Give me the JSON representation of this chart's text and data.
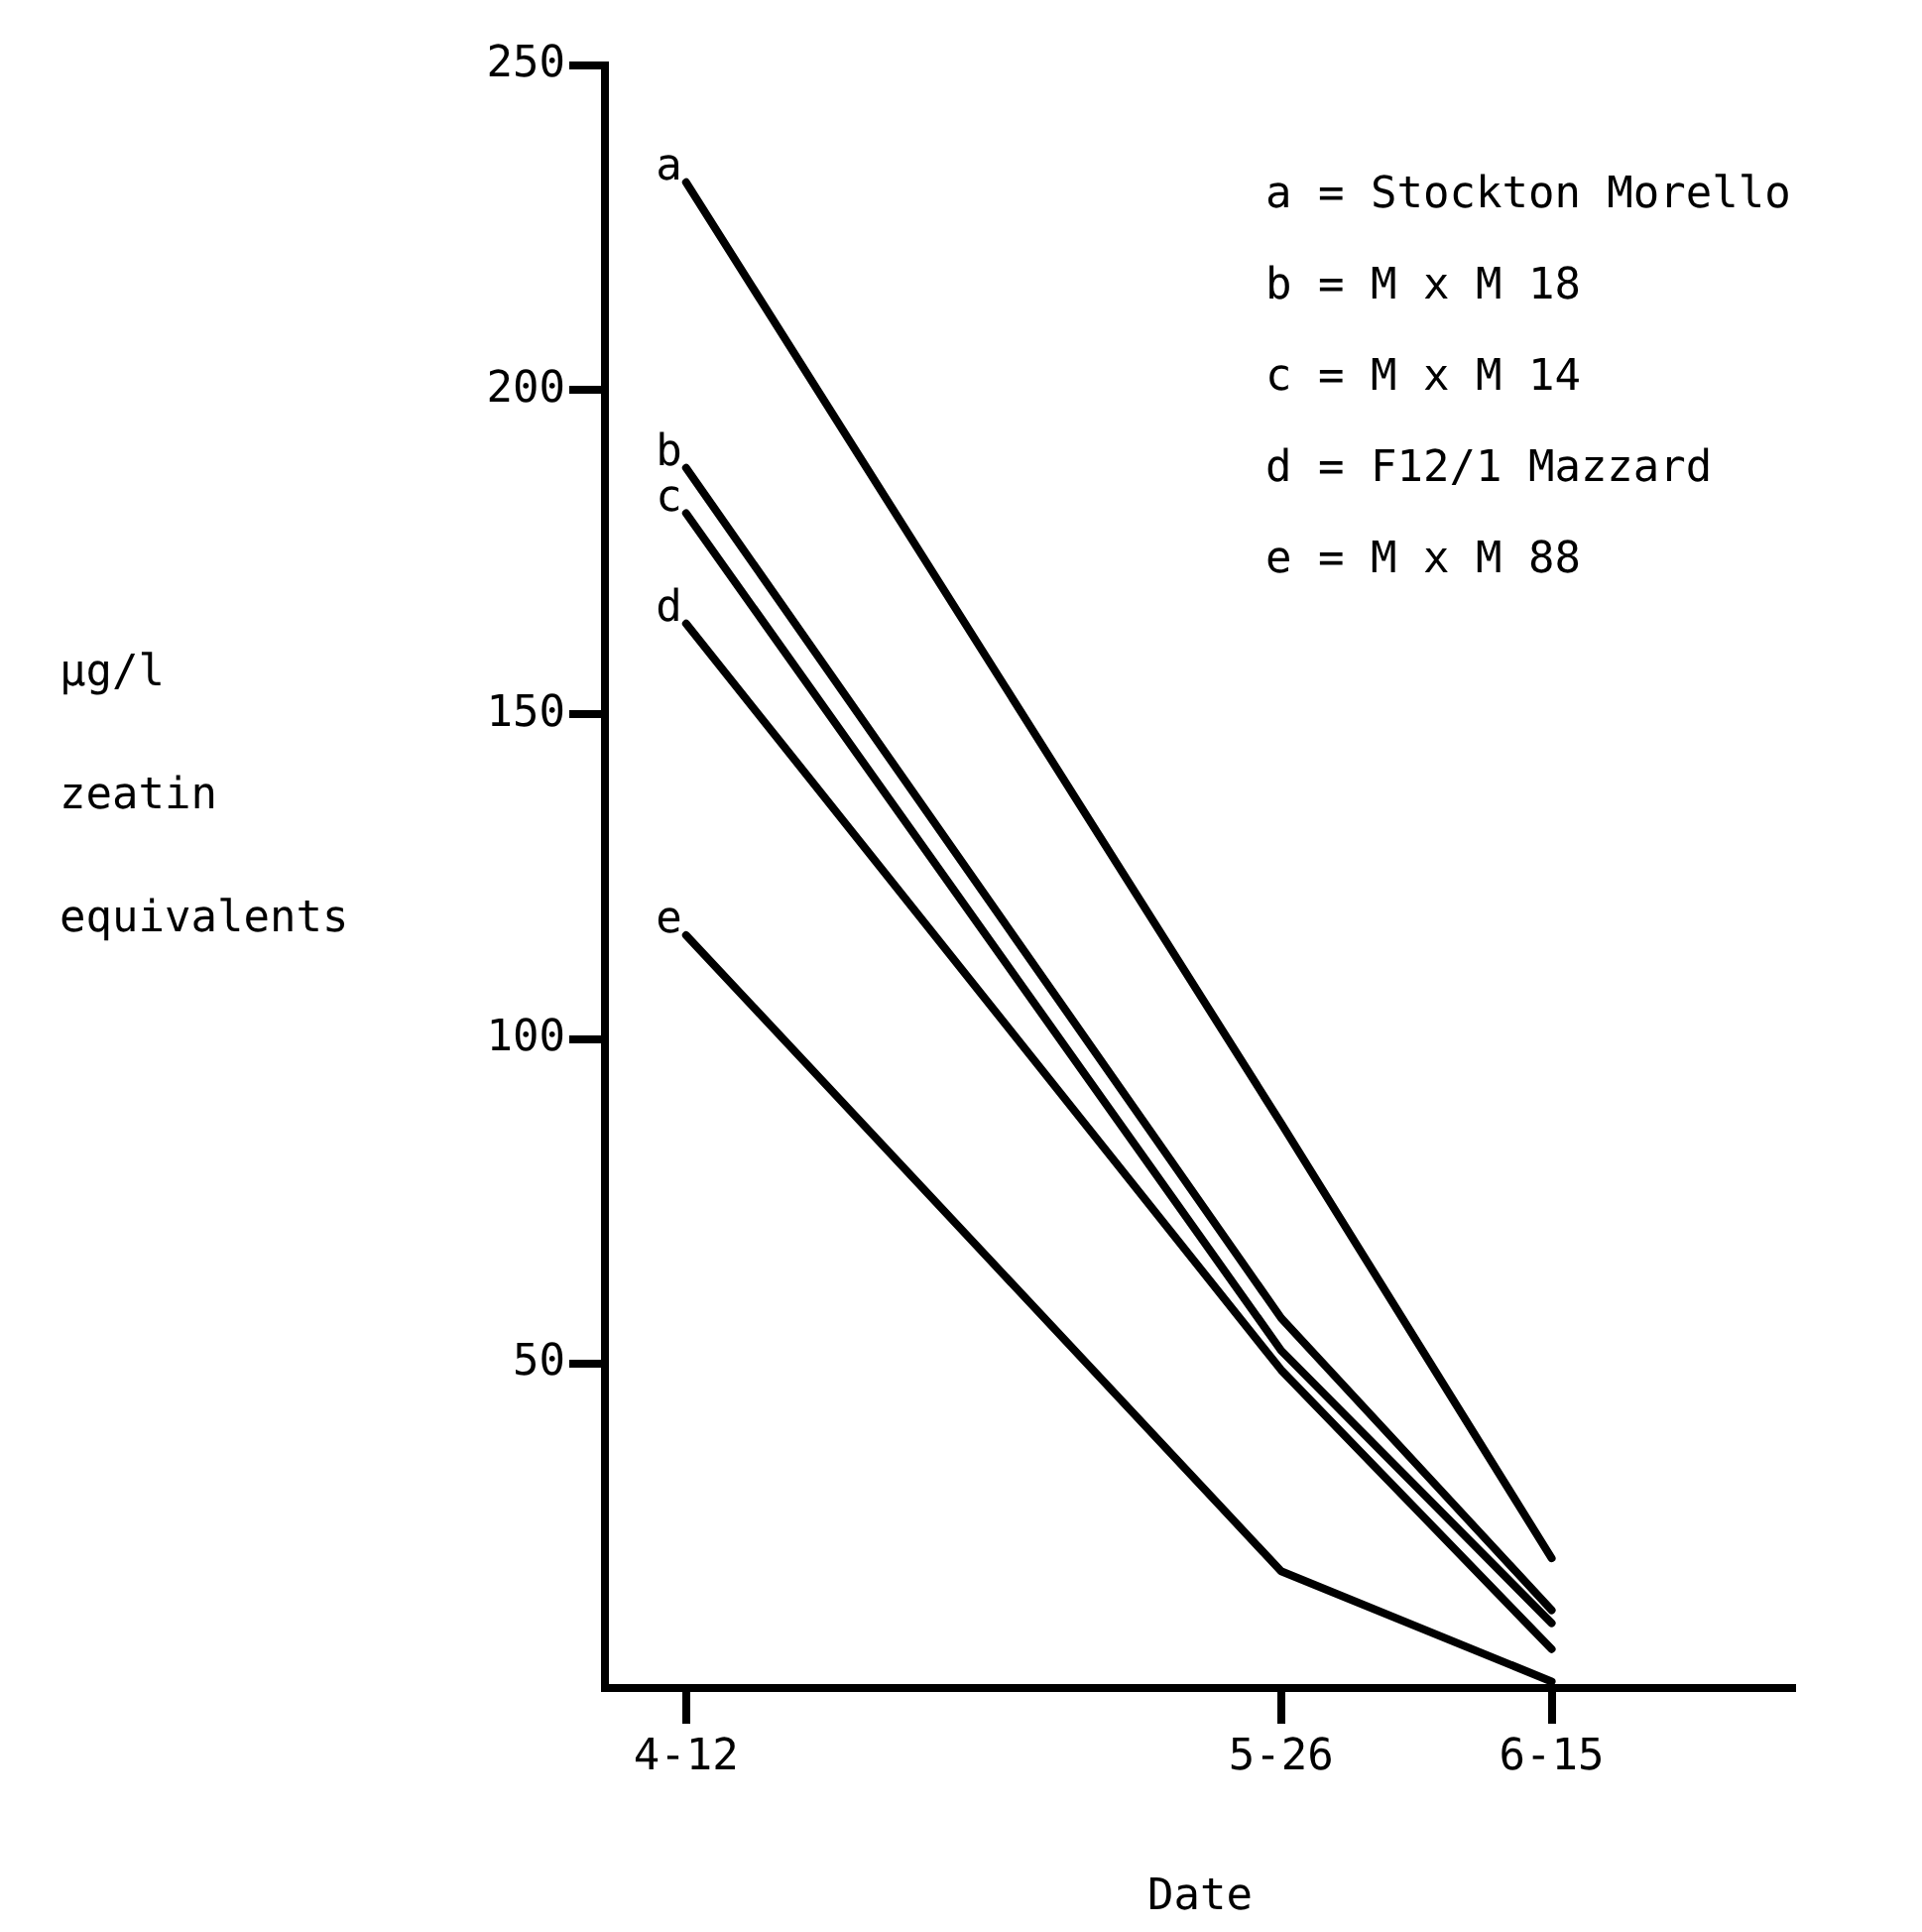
{
  "chart_data": {
    "type": "line",
    "xlabel": "Date",
    "ylabel": "µg/l zeatin equivalents",
    "x": [
      "--04-12",
      "--05-26",
      "--06-15"
    ],
    "xlim": [
      "--04-06",
      "--07-03"
    ],
    "xticks": [
      {
        "value": "--04-12",
        "label": "4-12"
      },
      {
        "value": "--05-26",
        "label": "5-26"
      },
      {
        "value": "--06-15",
        "label": "6-15"
      }
    ],
    "ylim": [
      0,
      250
    ],
    "yticks": [
      {
        "value": 0,
        "label": null
      },
      50,
      100,
      150,
      200,
      250
    ],
    "series": [
      {
        "name": "a",
        "color": "#000000",
        "values": [
          232,
          87,
          20
        ]
      },
      {
        "name": "b",
        "color": "#000000",
        "values": [
          188,
          57,
          12
        ]
      },
      {
        "name": "c",
        "color": "#000000",
        "values": [
          181,
          52,
          10
        ]
      },
      {
        "name": "d",
        "color": "#000000",
        "values": [
          164,
          49,
          6
        ]
      },
      {
        "name": "e",
        "color": "#000000",
        "values": [
          116,
          18,
          1
        ]
      }
    ],
    "annotations": [
      "a = Stockton Morello",
      "b = M x M 18",
      "c = M x M 14",
      "d = F12/1 Mazzard",
      "e = M x M 88"
    ],
    "grid": false,
    "legend": false,
    "marker": "none",
    "line_style": "solid"
  }
}
